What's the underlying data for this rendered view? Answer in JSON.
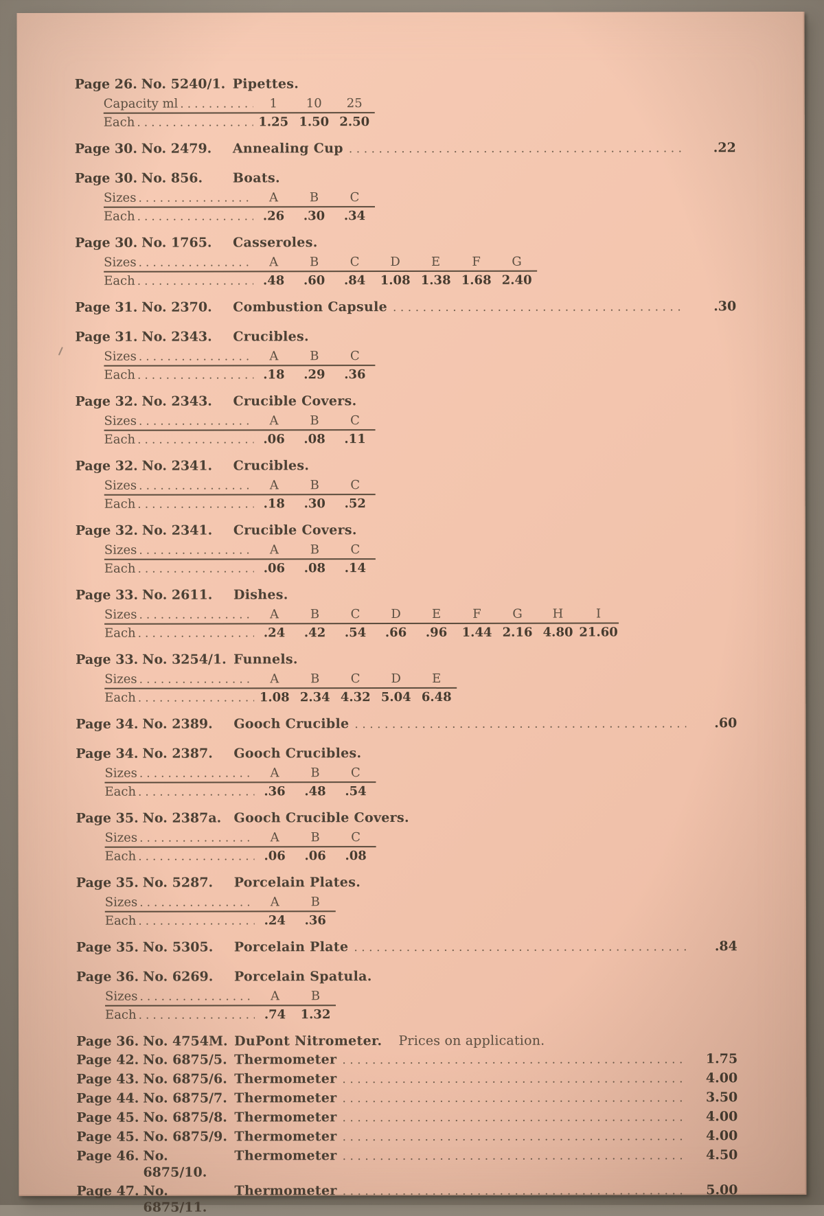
{
  "colors": {
    "background": "#8b8276",
    "paper": "#f3c5ae",
    "ink_bold": "#4c4135",
    "ink_regular": "#5c4f41",
    "rule": "#5a4b3c",
    "dot_leader": "#6d5c4b"
  },
  "leader_dots": "........................................................................................................................",
  "entries": [
    {
      "kind": "table",
      "page": "Page 26.",
      "number": "No. 5240/1.",
      "item": "Pipettes.",
      "rows": [
        {
          "label": "Capacity ml",
          "values": [
            "1",
            "10",
            "25"
          ],
          "bold": false
        },
        {
          "label": "Each",
          "values": [
            "1.25",
            "1.50",
            "2.50"
          ],
          "bold": true
        }
      ]
    },
    {
      "kind": "line",
      "page": "Page 30.",
      "number": "No. 2479.",
      "item": "Annealing Cup",
      "price": ".22"
    },
    {
      "kind": "table",
      "page": "Page 30.",
      "number": "No. 856.",
      "item": "Boats.",
      "rows": [
        {
          "label": "Sizes",
          "values": [
            "A",
            "B",
            "C"
          ],
          "bold": false
        },
        {
          "label": "Each",
          "values": [
            ".26",
            ".30",
            ".34"
          ],
          "bold": true
        }
      ]
    },
    {
      "kind": "table",
      "page": "Page 30.",
      "number": "No. 1765.",
      "item": "Casseroles.",
      "rows": [
        {
          "label": "Sizes",
          "values": [
            "A",
            "B",
            "C",
            "D",
            "E",
            "F",
            "G"
          ],
          "bold": false
        },
        {
          "label": "Each",
          "values": [
            ".48",
            ".60",
            ".84",
            "1.08",
            "1.38",
            "1.68",
            "2.40"
          ],
          "bold": true
        }
      ]
    },
    {
      "kind": "line",
      "page": "Page 31.",
      "number": "No. 2370.",
      "item": "Combustion Capsule",
      "price": ".30"
    },
    {
      "kind": "table",
      "page": "Page 31.",
      "number": "No. 2343.",
      "item": "Crucibles.",
      "rows": [
        {
          "label": "Sizes",
          "values": [
            "A",
            "B",
            "C"
          ],
          "bold": false
        },
        {
          "label": "Each",
          "values": [
            ".18",
            ".29",
            ".36"
          ],
          "bold": true
        }
      ]
    },
    {
      "kind": "table",
      "page": "Page 32.",
      "number": "No. 2343.",
      "item": "Crucible Covers.",
      "rows": [
        {
          "label": "Sizes",
          "values": [
            "A",
            "B",
            "C"
          ],
          "bold": false
        },
        {
          "label": "Each",
          "values": [
            ".06",
            ".08",
            ".11"
          ],
          "bold": true
        }
      ]
    },
    {
      "kind": "table",
      "page": "Page 32.",
      "number": "No. 2341.",
      "item": "Crucibles.",
      "rows": [
        {
          "label": "Sizes",
          "values": [
            "A",
            "B",
            "C"
          ],
          "bold": false
        },
        {
          "label": "Each",
          "values": [
            ".18",
            ".30",
            ".52"
          ],
          "bold": true
        }
      ]
    },
    {
      "kind": "table",
      "page": "Page 32.",
      "number": "No. 2341.",
      "item": "Crucible Covers.",
      "rows": [
        {
          "label": "Sizes",
          "values": [
            "A",
            "B",
            "C"
          ],
          "bold": false
        },
        {
          "label": "Each",
          "values": [
            ".06",
            ".08",
            ".14"
          ],
          "bold": true
        }
      ]
    },
    {
      "kind": "table",
      "page": "Page 33.",
      "number": "No. 2611.",
      "item": "Dishes.",
      "rows": [
        {
          "label": "Sizes",
          "values": [
            "A",
            "B",
            "C",
            "D",
            "E",
            "F",
            "G",
            "H",
            "I"
          ],
          "bold": false
        },
        {
          "label": "Each",
          "values": [
            ".24",
            ".42",
            ".54",
            ".66",
            ".96",
            "1.44",
            "2.16",
            "4.80",
            "21.60"
          ],
          "bold": true
        }
      ]
    },
    {
      "kind": "table",
      "page": "Page 33.",
      "number": "No. 3254/1.",
      "item": "Funnels.",
      "rows": [
        {
          "label": "Sizes",
          "values": [
            "A",
            "B",
            "C",
            "D",
            "E"
          ],
          "bold": false
        },
        {
          "label": "Each",
          "values": [
            "1.08",
            "2.34",
            "4.32",
            "5.04",
            "6.48"
          ],
          "bold": true
        }
      ]
    },
    {
      "kind": "line",
      "page": "Page 34.",
      "number": "No. 2389.",
      "item": "Gooch Crucible",
      "price": ".60"
    },
    {
      "kind": "table",
      "page": "Page 34.",
      "number": "No. 2387.",
      "item": "Gooch Crucibles.",
      "rows": [
        {
          "label": "Sizes",
          "values": [
            "A",
            "B",
            "C"
          ],
          "bold": false
        },
        {
          "label": "Each",
          "values": [
            ".36",
            ".48",
            ".54"
          ],
          "bold": true
        }
      ]
    },
    {
      "kind": "table",
      "page": "Page 35.",
      "number": "No. 2387a.",
      "item": "Gooch Crucible Covers.",
      "rows": [
        {
          "label": "Sizes",
          "values": [
            "A",
            "B",
            "C"
          ],
          "bold": false
        },
        {
          "label": "Each",
          "values": [
            ".06",
            ".06",
            ".08"
          ],
          "bold": true
        }
      ]
    },
    {
      "kind": "table",
      "page": "Page 35.",
      "number": "No. 5287.",
      "item": "Porcelain Plates.",
      "rows": [
        {
          "label": "Sizes",
          "values": [
            "A",
            "B"
          ],
          "bold": false
        },
        {
          "label": "Each",
          "values": [
            ".24",
            ".36"
          ],
          "bold": true
        }
      ]
    },
    {
      "kind": "line",
      "page": "Page 35.",
      "number": "No. 5305.",
      "item": "Porcelain Plate",
      "price": ".84"
    },
    {
      "kind": "table",
      "page": "Page 36.",
      "number": "No. 6269.",
      "item": "Porcelain Spatula.",
      "rows": [
        {
          "label": "Sizes",
          "values": [
            "A",
            "B"
          ],
          "bold": false
        },
        {
          "label": "Each",
          "values": [
            ".74",
            "1.32"
          ],
          "bold": true
        }
      ]
    },
    {
      "kind": "compact",
      "page": "Page 36.",
      "number": "No. 4754M.",
      "item": "DuPont Nitrometer.",
      "note": "Prices on application.",
      "price": null
    },
    {
      "kind": "compact",
      "page": "Page 42.",
      "number": "No. 6875/5.",
      "item": "Thermometer",
      "price": "1.75"
    },
    {
      "kind": "compact",
      "page": "Page 43.",
      "number": "No. 6875/6.",
      "item": "Thermometer",
      "price": "4.00"
    },
    {
      "kind": "compact",
      "page": "Page 44.",
      "number": "No. 6875/7.",
      "item": "Thermometer",
      "price": "3.50"
    },
    {
      "kind": "compact",
      "page": "Page 45.",
      "number": "No. 6875/8.",
      "item": "Thermometer",
      "price": "4.00"
    },
    {
      "kind": "compact",
      "page": "Page 45.",
      "number": "No. 6875/9.",
      "item": "Thermometer",
      "price": "4.00"
    },
    {
      "kind": "compact",
      "page": "Page 46.",
      "number": "No. 6875/10.",
      "item": "Thermometer",
      "price": "4.50"
    },
    {
      "kind": "compact",
      "page": "Page 47.",
      "number": "No. 6875/11.",
      "item": "Thermometer",
      "price": "5.00"
    }
  ]
}
